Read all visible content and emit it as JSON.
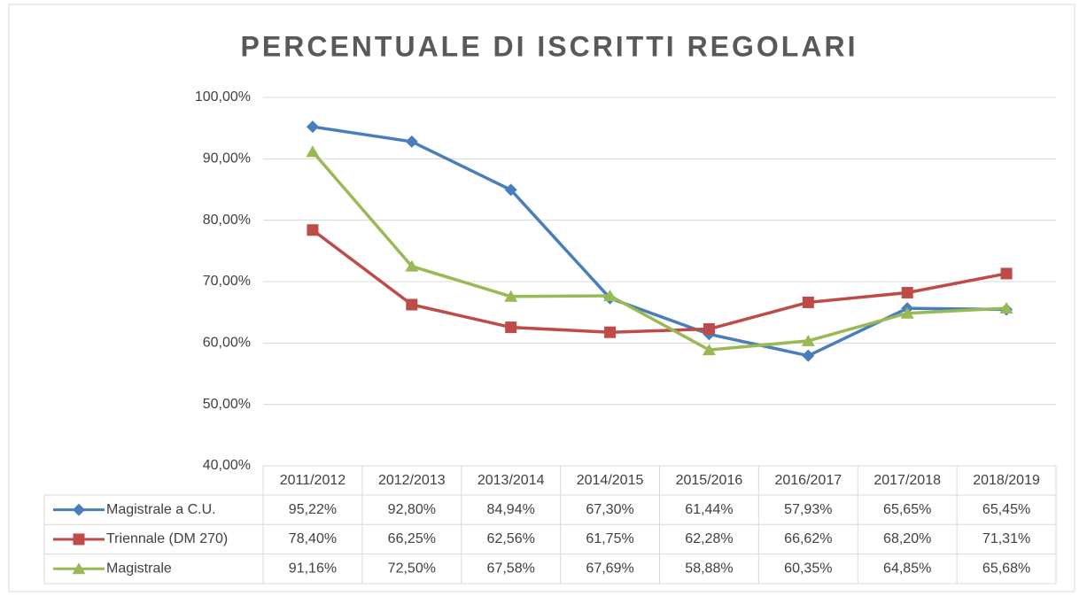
{
  "chart_data": {
    "type": "line",
    "title": "PERCENTUALE DI ISCRITTI REGOLARI",
    "categories": [
      "2011/2012",
      "2012/2013",
      "2013/2014",
      "2014/2015",
      "2015/2016",
      "2016/2017",
      "2017/2018",
      "2018/2019"
    ],
    "series": [
      {
        "name": "Magistrale a C.U.",
        "color": "#4a7ebb",
        "marker": "diamond",
        "values": [
          95.22,
          92.8,
          84.94,
          67.3,
          61.44,
          57.93,
          65.65,
          65.45
        ],
        "value_labels": [
          "95,22%",
          "92,80%",
          "84,94%",
          "67,30%",
          "61,44%",
          "57,93%",
          "65,65%",
          "65,45%"
        ]
      },
      {
        "name": "Triennale (DM 270)",
        "color": "#be4b48",
        "marker": "square",
        "values": [
          78.4,
          66.25,
          62.56,
          61.75,
          62.28,
          66.62,
          68.2,
          71.31
        ],
        "value_labels": [
          "78,40%",
          "66,25%",
          "62,56%",
          "61,75%",
          "62,28%",
          "66,62%",
          "68,20%",
          "71,31%"
        ]
      },
      {
        "name": "Magistrale",
        "color": "#98b954",
        "marker": "triangle",
        "values": [
          91.16,
          72.5,
          67.58,
          67.69,
          58.88,
          60.35,
          64.85,
          65.68
        ],
        "value_labels": [
          "91,16%",
          "72,50%",
          "67,58%",
          "67,69%",
          "58,88%",
          "60,35%",
          "64,85%",
          "65,68%"
        ]
      }
    ],
    "ylim": [
      40,
      100
    ],
    "yticks": [
      {
        "value": 40,
        "label": "40,00%"
      },
      {
        "value": 50,
        "label": "50,00%"
      },
      {
        "value": 60,
        "label": "60,00%"
      },
      {
        "value": 70,
        "label": "70,00%"
      },
      {
        "value": 80,
        "label": "80,00%"
      },
      {
        "value": 90,
        "label": "90,00%"
      },
      {
        "value": 100,
        "label": "100,00%"
      }
    ],
    "grid": true
  }
}
